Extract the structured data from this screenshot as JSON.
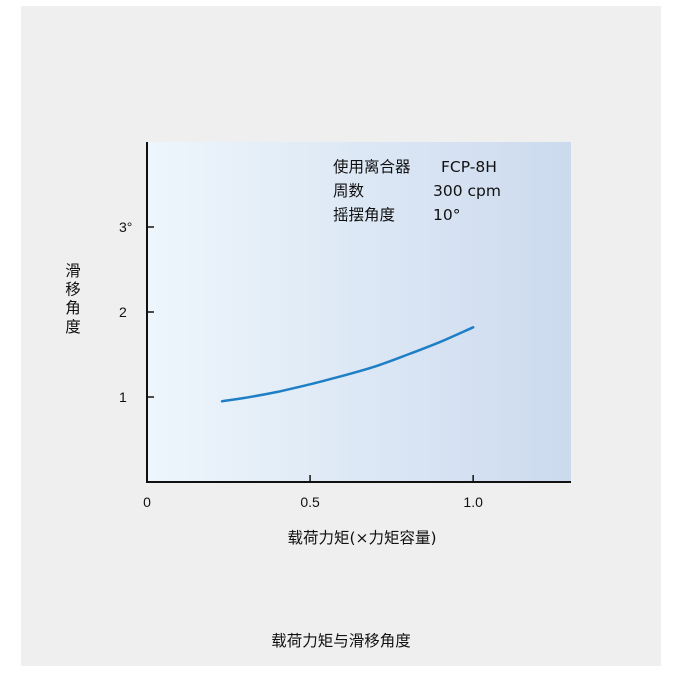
{
  "chart_data": {
    "type": "line",
    "title": "载荷力矩与滑移角度",
    "xlabel": "载荷力矩(×力矩容量)",
    "ylabel": "滑移角度",
    "xlim": [
      0,
      1.3
    ],
    "ylim": [
      0,
      4
    ],
    "x_ticks": [
      "0",
      "0.5",
      "1.0"
    ],
    "x_tick_values": [
      0,
      0.5,
      1.0
    ],
    "y_ticks": [
      "1",
      "2",
      "3°"
    ],
    "y_tick_values": [
      1,
      2,
      3
    ],
    "grid": false,
    "line_color": "#1f7fc6",
    "series": [
      {
        "x": [
          0.23,
          0.3,
          0.4,
          0.5,
          0.6,
          0.7,
          0.8,
          0.9,
          1.0
        ],
        "y": [
          0.95,
          0.99,
          1.06,
          1.15,
          1.25,
          1.36,
          1.5,
          1.65,
          1.82
        ]
      }
    ],
    "annotation": {
      "line1_label": "使用离合器",
      "line1_value": "FCP-8H",
      "line2_label": "周数",
      "line2_value": "300 cpm",
      "line3_label": "摇摆角度",
      "line3_value": "10°"
    }
  }
}
